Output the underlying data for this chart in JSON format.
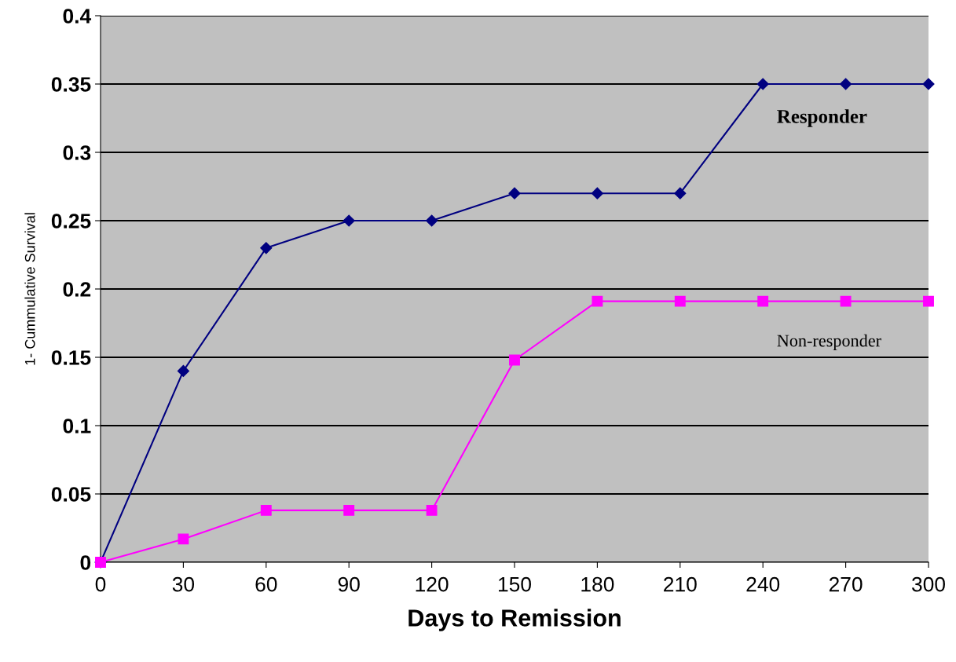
{
  "chart_data": {
    "type": "line",
    "xlabel": "Days to Remission",
    "ylabel": "1- Cummulative Survival",
    "x": [
      0,
      30,
      60,
      90,
      120,
      150,
      180,
      210,
      240,
      270,
      300
    ],
    "series": [
      {
        "name": "Responder",
        "color": "#000080",
        "marker": "diamond",
        "values": [
          0,
          0.14,
          0.23,
          0.25,
          0.25,
          0.27,
          0.27,
          0.27,
          0.35,
          0.35,
          0.35
        ]
      },
      {
        "name": "Non-responder",
        "color": "#ff00ff",
        "marker": "square",
        "values": [
          0,
          0.017,
          0.038,
          0.038,
          0.038,
          0.148,
          0.191,
          0.191,
          0.191,
          0.191,
          0.191
        ]
      }
    ],
    "xlim": [
      0,
      300
    ],
    "xticks": [
      0,
      30,
      60,
      90,
      120,
      150,
      180,
      210,
      240,
      270,
      300
    ],
    "ylim": [
      0,
      0.4
    ],
    "yticks": [
      0,
      0.05,
      0.1,
      0.15,
      0.2,
      0.25,
      0.3,
      0.35,
      0.4
    ],
    "grid": "y",
    "line_style": "solid"
  }
}
